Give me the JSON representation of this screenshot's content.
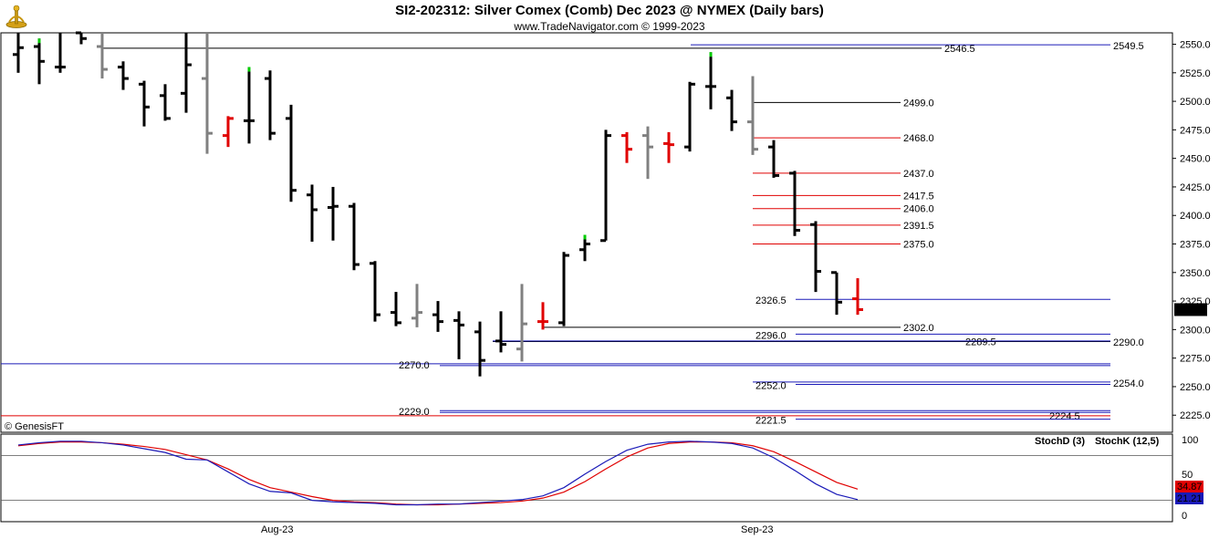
{
  "header": {
    "title": "SI2-202312:  Silver Comex (Comb) Dec 2023 @ NYMEX  (Daily bars)",
    "subtitle": "www.TradeNavigator.com © 1999-2023"
  },
  "copyright": "© GenesisFT",
  "colors": {
    "up_bar": "#000000",
    "inside_bar": "#808080",
    "red_bar": "#e00000",
    "green_tick": "#00cc00",
    "blue_level": "#1a1ab8",
    "red_level": "#e00000",
    "stoch_k": "#1a1ab8",
    "stoch_d": "#e00000"
  },
  "chart_data": [
    {
      "type": "ohlc",
      "ylim": [
        2210,
        2560
      ],
      "y_ticks": [
        2225.0,
        2250.0,
        2275.0,
        2300.0,
        2325.0,
        2350.0,
        2375.0,
        2400.0,
        2425.0,
        2450.0,
        2475.0,
        2500.0,
        2525.0,
        2550.0
      ],
      "x_labels": [
        "Aug-23",
        "Sep-23"
      ],
      "last_price": "2317.5",
      "bars": [
        {
          "o": 2541,
          "h": 2560,
          "l": 2525,
          "c": 2547,
          "color": "black"
        },
        {
          "o": 2548,
          "h": 2555,
          "l": 2515,
          "c": 2535,
          "color": "black"
        },
        {
          "o": 2530,
          "h": 2560,
          "l": 2525,
          "c": 2530,
          "color": "black"
        },
        {
          "o": 2560,
          "h": 2560,
          "l": 2550,
          "c": 2555,
          "color": "black"
        },
        {
          "o": 2548,
          "h": 2560,
          "l": 2520,
          "c": 2528,
          "color": "gray"
        },
        {
          "o": 2530,
          "h": 2535,
          "l": 2510,
          "c": 2520,
          "color": "black"
        },
        {
          "o": 2515,
          "h": 2518,
          "l": 2478,
          "c": 2495,
          "color": "black"
        },
        {
          "o": 2505,
          "h": 2515,
          "l": 2483,
          "c": 2485,
          "color": "black"
        },
        {
          "o": 2507,
          "h": 2560,
          "l": 2490,
          "c": 2532,
          "color": "black"
        },
        {
          "o": 2520,
          "h": 2560,
          "l": 2454,
          "c": 2472,
          "color": "gray"
        },
        {
          "o": 2470,
          "h": 2487,
          "l": 2460,
          "c": 2485,
          "color": "red"
        },
        {
          "o": 2483,
          "h": 2530,
          "l": 2463,
          "c": 2483,
          "color": "black"
        },
        {
          "o": 2520,
          "h": 2527,
          "l": 2466,
          "c": 2472,
          "color": "black"
        },
        {
          "o": 2485,
          "h": 2497,
          "l": 2412,
          "c": 2422,
          "color": "black"
        },
        {
          "o": 2418,
          "h": 2427,
          "l": 2377,
          "c": 2405,
          "color": "black"
        },
        {
          "o": 2407,
          "h": 2425,
          "l": 2378,
          "c": 2408,
          "color": "black"
        },
        {
          "o": 2408,
          "h": 2411,
          "l": 2352,
          "c": 2357,
          "color": "black"
        },
        {
          "o": 2358,
          "h": 2360,
          "l": 2307,
          "c": 2313,
          "color": "black"
        },
        {
          "o": 2315,
          "h": 2333,
          "l": 2303,
          "c": 2306,
          "color": "black"
        },
        {
          "o": 2310,
          "h": 2340,
          "l": 2302,
          "c": 2315,
          "color": "gray"
        },
        {
          "o": 2313,
          "h": 2325,
          "l": 2298,
          "c": 2307,
          "color": "black"
        },
        {
          "o": 2308,
          "h": 2316,
          "l": 2274,
          "c": 2304,
          "color": "black"
        },
        {
          "o": 2298,
          "h": 2307,
          "l": 2259,
          "c": 2273,
          "color": "black"
        },
        {
          "o": 2290,
          "h": 2316,
          "l": 2280,
          "c": 2287,
          "color": "black"
        },
        {
          "o": 2283,
          "h": 2340,
          "l": 2272,
          "c": 2305,
          "color": "gray"
        },
        {
          "o": 2307,
          "h": 2324,
          "l": 2300,
          "c": 2307,
          "color": "red"
        },
        {
          "o": 2306,
          "h": 2368,
          "l": 2303,
          "c": 2365,
          "color": "black"
        },
        {
          "o": 2370,
          "h": 2383,
          "l": 2360,
          "c": 2375,
          "color": "black"
        },
        {
          "o": 2378,
          "h": 2475,
          "l": 2378,
          "c": 2470,
          "color": "black"
        },
        {
          "o": 2470,
          "h": 2473,
          "l": 2446,
          "c": 2458,
          "color": "red"
        },
        {
          "o": 2470,
          "h": 2478,
          "l": 2432,
          "c": 2460,
          "color": "gray"
        },
        {
          "o": 2463,
          "h": 2473,
          "l": 2446,
          "c": 2462,
          "color": "red"
        },
        {
          "o": 2460,
          "h": 2517,
          "l": 2456,
          "c": 2515,
          "color": "black"
        },
        {
          "o": 2513,
          "h": 2543,
          "l": 2493,
          "c": 2513,
          "color": "black"
        },
        {
          "o": 2503,
          "h": 2510,
          "l": 2474,
          "c": 2482,
          "color": "black"
        },
        {
          "o": 2482,
          "h": 2522,
          "l": 2453,
          "c": 2458,
          "color": "gray"
        },
        {
          "o": 2460,
          "h": 2466,
          "l": 2433,
          "c": 2435,
          "color": "black"
        },
        {
          "o": 2437,
          "h": 2439,
          "l": 2382,
          "c": 2387,
          "color": "black"
        },
        {
          "o": 2392,
          "h": 2395,
          "l": 2333,
          "c": 2351,
          "color": "black"
        },
        {
          "o": 2350,
          "h": 2350,
          "l": 2313,
          "c": 2324,
          "color": "black"
        },
        {
          "o": 2327,
          "h": 2345,
          "l": 2313,
          "c": 2317.5,
          "color": "red"
        }
      ],
      "green_ticks": [
        1,
        11,
        27,
        33
      ],
      "levels": [
        {
          "value": 2549.5,
          "label": "2549.5",
          "color": "blue",
          "label_side": "right"
        },
        {
          "value": 2546.5,
          "label": "2546.5",
          "color": "black",
          "label_side": "mid"
        },
        {
          "value": 2499.0,
          "label": "2499.0",
          "color": "black",
          "label_side": "mid"
        },
        {
          "value": 2468.0,
          "label": "2468.0",
          "color": "red",
          "label_side": "mid"
        },
        {
          "value": 2437.0,
          "label": "2437.0",
          "color": "red",
          "label_side": "mid"
        },
        {
          "value": 2417.5,
          "label": "2417.5",
          "color": "red",
          "label_side": "mid"
        },
        {
          "value": 2406.0,
          "label": "2406.0",
          "color": "red",
          "label_side": "mid"
        },
        {
          "value": 2391.5,
          "label": "2391.5",
          "color": "red",
          "label_side": "mid"
        },
        {
          "value": 2375.0,
          "label": "2375.0",
          "color": "red",
          "label_side": "mid"
        },
        {
          "value": 2326.5,
          "label": "2326.5",
          "color": "blue",
          "label_side": "left"
        },
        {
          "value": 2302.0,
          "label": "2302.0",
          "color": "black",
          "label_side": "mid"
        },
        {
          "value": 2296.0,
          "label": "2296.0",
          "color": "blue",
          "label_side": "left"
        },
        {
          "value": 2289.5,
          "label": "2289.5",
          "color": "black",
          "label_side": "far"
        },
        {
          "value": 2290.0,
          "label": "2290.0",
          "color": "blue",
          "label_side": "right"
        },
        {
          "value": 2270.0,
          "label": "2270.0",
          "color": "blue",
          "label_side": "left"
        },
        {
          "value": 2254.0,
          "label": "2254.0",
          "color": "blue",
          "label_side": "right"
        },
        {
          "value": 2252.0,
          "label": "2252.0",
          "color": "blue",
          "label_side": "left"
        },
        {
          "value": 2229.0,
          "label": "2229.0",
          "color": "blue",
          "label_side": "left"
        },
        {
          "value": 2224.5,
          "label": "2224.5",
          "color": "red",
          "label_side": "far"
        },
        {
          "value": 2221.5,
          "label": "2221.5",
          "color": "blue",
          "label_side": "left"
        }
      ]
    },
    {
      "type": "line",
      "title_d": "StochD (3)",
      "title_k": "StochK (12,5)",
      "ylim": [
        0,
        100
      ],
      "y_ticks": [
        0,
        50,
        100
      ],
      "reference_lines": [
        80,
        20
      ],
      "k_last": "21.21",
      "d_last": "34.87",
      "series": [
        {
          "name": "StochK (12,5)",
          "color": "blue",
          "values": [
            94,
            97,
            99,
            99,
            97,
            94,
            89,
            84,
            75,
            74,
            58,
            42,
            32,
            30,
            20,
            18,
            17,
            16,
            14,
            14,
            15,
            15,
            17,
            19,
            21,
            26,
            37,
            55,
            72,
            87,
            95,
            98,
            99,
            98,
            96,
            90,
            77,
            60,
            42,
            28,
            21
          ]
        },
        {
          "name": "StochD (3)",
          "color": "red",
          "values": [
            93,
            96,
            98,
            98,
            97,
            95,
            92,
            88,
            81,
            74,
            62,
            48,
            37,
            31,
            25,
            20,
            18,
            17,
            15,
            14,
            14,
            15,
            16,
            17,
            19,
            23,
            31,
            45,
            62,
            78,
            90,
            96,
            98,
            98,
            97,
            93,
            85,
            72,
            58,
            44,
            35
          ]
        }
      ]
    }
  ]
}
